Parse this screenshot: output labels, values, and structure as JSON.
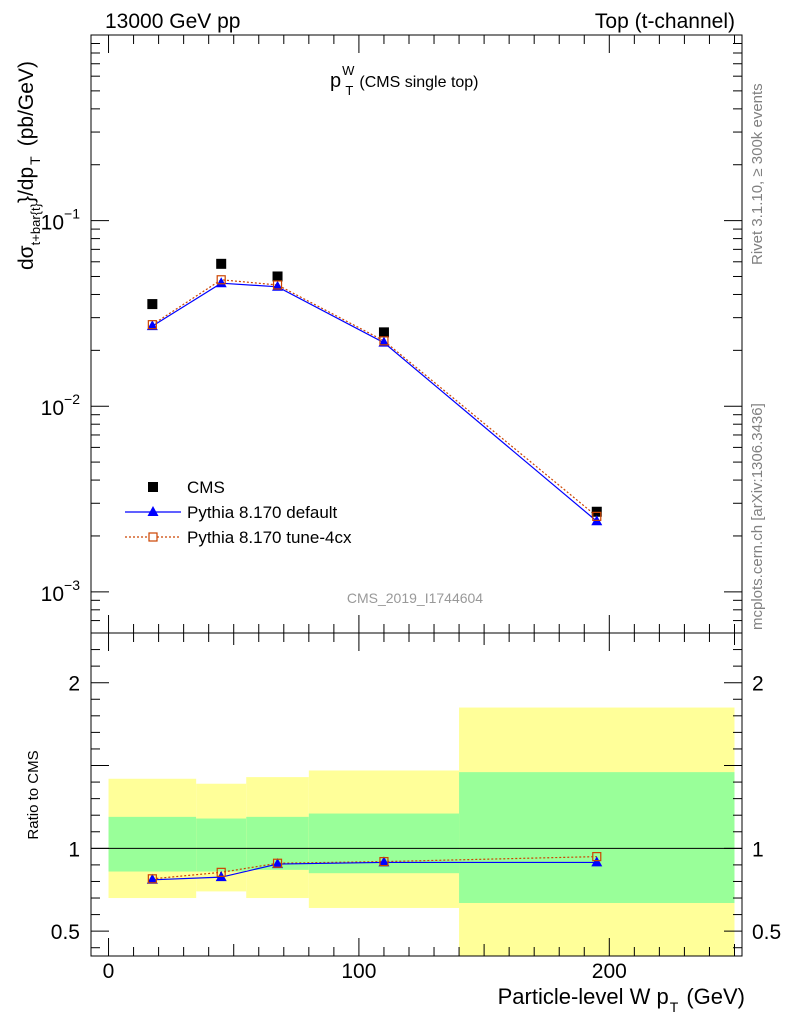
{
  "header": {
    "left": "13000 GeV pp",
    "right": "Top (t-channel)"
  },
  "side_labels": {
    "rivet": "Rivet 3.1.10, ≥ 300k events",
    "mcplots": "mcplots.cern.ch [arXiv:1306.3436]"
  },
  "colors": {
    "cms": "#000000",
    "default": "#0000ff",
    "tune": "#cc4400",
    "band_inner": "#99ff99",
    "band_outer": "#ffff99"
  },
  "chart_data": [
    {
      "type": "scatter",
      "title": "p_T^W (CMS single top)",
      "title_main": "p",
      "title_sup": "W",
      "title_sub": "T",
      "title_rest": "(CMS single top)",
      "ylabel": "dσ_{t+bar{t}}/dp_T (pb/GeV)",
      "ylabel_d": "d",
      "ylabel_sigma": "σ",
      "ylabel_sigma_sub": "t+bar{t}",
      "ylabel_mid": "}/dp",
      "ylabel_t_sub": "T",
      "ylabel_units": "(pb/GeV)",
      "yscale": "log",
      "ylim": [
        0.0006,
        1.0
      ],
      "xlim": [
        -7,
        253
      ],
      "y_tick_labels": [
        {
          "base": "10",
          "exp": "−1",
          "value": 0.1
        },
        {
          "base": "10",
          "exp": "−2",
          "value": 0.01
        },
        {
          "base": "10",
          "exp": "−3",
          "value": 0.001
        }
      ],
      "watermark": "CMS_2019_I1744604",
      "legend_position": "bottom-left",
      "series": [
        {
          "name": "CMS",
          "key": "cms",
          "x": [
            17.5,
            45,
            67.5,
            110,
            195
          ],
          "y": [
            0.0355,
            0.0585,
            0.05,
            0.025,
            0.0027
          ],
          "xerr": [
            [
              0,
              35
            ],
            [
              35,
              55
            ],
            [
              55,
              80
            ],
            [
              80,
              140
            ],
            [
              140,
              250
            ]
          ]
        },
        {
          "name": "Pythia 8.170 default",
          "key": "default",
          "x": [
            17.5,
            45,
            67.5,
            110,
            195
          ],
          "y": [
            0.027,
            0.046,
            0.044,
            0.022,
            0.0024
          ]
        },
        {
          "name": "Pythia 8.170 tune-4cx",
          "key": "tune",
          "x": [
            17.5,
            45,
            67.5,
            110,
            195
          ],
          "y": [
            0.0275,
            0.048,
            0.045,
            0.0225,
            0.00255
          ]
        }
      ]
    },
    {
      "type": "scatter",
      "ylabel": "Ratio to CMS",
      "xlabel": "Particle-level W p_T (GeV)",
      "xlabel_main": "Particle-level W p",
      "xlabel_sub": "T",
      "xlabel_units": "(GeV)",
      "xlim": [
        -7,
        253
      ],
      "ylim": [
        0.35,
        2.3
      ],
      "x_ticks": [
        0,
        100,
        200
      ],
      "y_ticks": [
        0.5,
        1,
        2
      ],
      "bands": [
        {
          "x0": 0,
          "x1": 35,
          "inner": [
            0.86,
            1.19
          ],
          "outer": [
            0.7,
            1.42
          ]
        },
        {
          "x0": 35,
          "x1": 55,
          "inner": [
            0.86,
            1.18
          ],
          "outer": [
            0.74,
            1.39
          ]
        },
        {
          "x0": 55,
          "x1": 80,
          "inner": [
            0.87,
            1.19
          ],
          "outer": [
            0.7,
            1.43
          ]
        },
        {
          "x0": 80,
          "x1": 140,
          "inner": [
            0.85,
            1.21
          ],
          "outer": [
            0.64,
            1.47
          ]
        },
        {
          "x0": 140,
          "x1": 250,
          "inner": [
            0.67,
            1.46
          ],
          "outer": [
            0.3,
            1.85
          ]
        }
      ],
      "series": [
        {
          "name": "Pythia 8.170 default",
          "key": "default",
          "x": [
            17.5,
            45,
            67.5,
            110,
            195
          ],
          "y": [
            0.81,
            0.826,
            0.905,
            0.915,
            0.915
          ]
        },
        {
          "name": "Pythia 8.170 tune-4cx",
          "key": "tune",
          "x": [
            17.5,
            45,
            67.5,
            110,
            195
          ],
          "y": [
            0.816,
            0.855,
            0.91,
            0.92,
            0.95
          ]
        }
      ]
    }
  ]
}
